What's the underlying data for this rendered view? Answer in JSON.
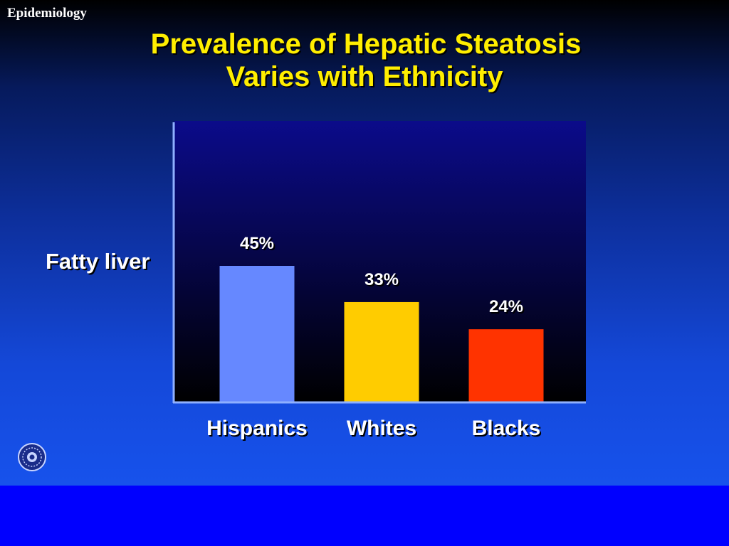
{
  "slide": {
    "section_label": "Epidemiology",
    "title_line_1": "Prevalence of Hepatic Steatosis",
    "title_line_2": "Varies with Ethnicity"
  },
  "colors": {
    "title": "#ffee00",
    "plot_background_top": "#000000",
    "plot_background_bottom": "#0b0b8a",
    "axis": "#8fb0ff"
  },
  "chart_data": {
    "type": "bar",
    "title": "Prevalence of Hepatic Steatosis Varies with Ethnicity",
    "ylabel": "Fatty liver",
    "xlabel": "",
    "categories": [
      "Hispanics",
      "Whites",
      "Blacks"
    ],
    "values": [
      45,
      33,
      24
    ],
    "value_labels": [
      "45%",
      "33%",
      "24%"
    ],
    "bar_colors": [
      "#6688ff",
      "#ffcc00",
      "#ff3300"
    ],
    "ylim": [
      0,
      100
    ],
    "grid": false,
    "legend": "none"
  }
}
